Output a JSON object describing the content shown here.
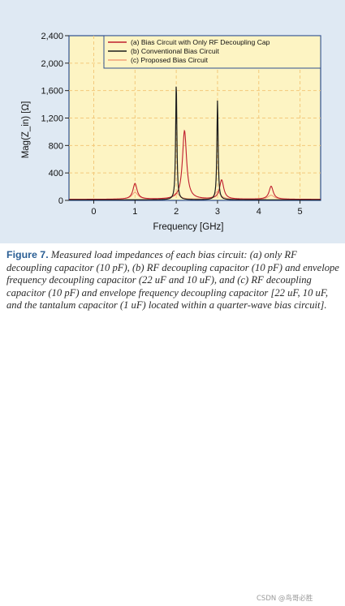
{
  "chart_data": {
    "type": "line",
    "ylabel": "Mag(Z_in) [Ω]",
    "xlabel": "Frequency [GHz]",
    "xlim": [
      -0.6,
      5.5
    ],
    "ylim": [
      0,
      2400
    ],
    "x_ticks": [
      "0",
      "1",
      "2",
      "3",
      "4",
      "5"
    ],
    "y_ticks": [
      "0",
      "400",
      "800",
      "1,200",
      "1,600",
      "2,000",
      "2,400"
    ],
    "grid": "dashed",
    "legend_position": "top-right",
    "colors": {
      "panel": "#fdf4c3",
      "frame": "#2e4f8f",
      "grid": "#f3c97b",
      "series_a": "#bf1e2e",
      "series_b": "#1b1b1b",
      "series_c": "#f2a07a",
      "background": "#dfe9f3"
    },
    "series": [
      {
        "name": "(a) Bias Circuit with Only RF Decoupling Cap",
        "color": "#bf1e2e",
        "peaks": [
          {
            "x": 1.0,
            "y": 230
          },
          {
            "x": 2.2,
            "y": 1000
          },
          {
            "x": 3.1,
            "y": 280
          },
          {
            "x": 4.3,
            "y": 190
          }
        ]
      },
      {
        "name": "(b) Conventional Bias Circuit",
        "color": "#1b1b1b",
        "peaks": [
          {
            "x": 2.0,
            "y": 1700
          },
          {
            "x": 3.0,
            "y": 1450
          }
        ]
      },
      {
        "name": "(c) Proposed Bias Circuit",
        "color": "#f2a07a",
        "peaks": [
          {
            "x": 1.0,
            "y": 100
          },
          {
            "x": 2.0,
            "y": 90
          },
          {
            "x": 3.0,
            "y": 110
          },
          {
            "x": 4.3,
            "y": 60
          }
        ]
      }
    ]
  },
  "caption": {
    "label": "Figure 7.",
    "text": " Measured load impedances of each bias circuit: (a) only RF decoupling capacitor (10 pF), (b) RF decoupling capacitor (10 pF) and envelope frequency decoupling capacitor (22 uF and 10 uF), and (c) RF decoupling capacitor (10 pF) and envelope frequency decoupling capacitor [22 uF, 10 uF, and the tantalum capacitor (1 uF) located within a quarter-wave bias circuit].",
    "watermark": "CSDN @鸟哥必胜"
  }
}
